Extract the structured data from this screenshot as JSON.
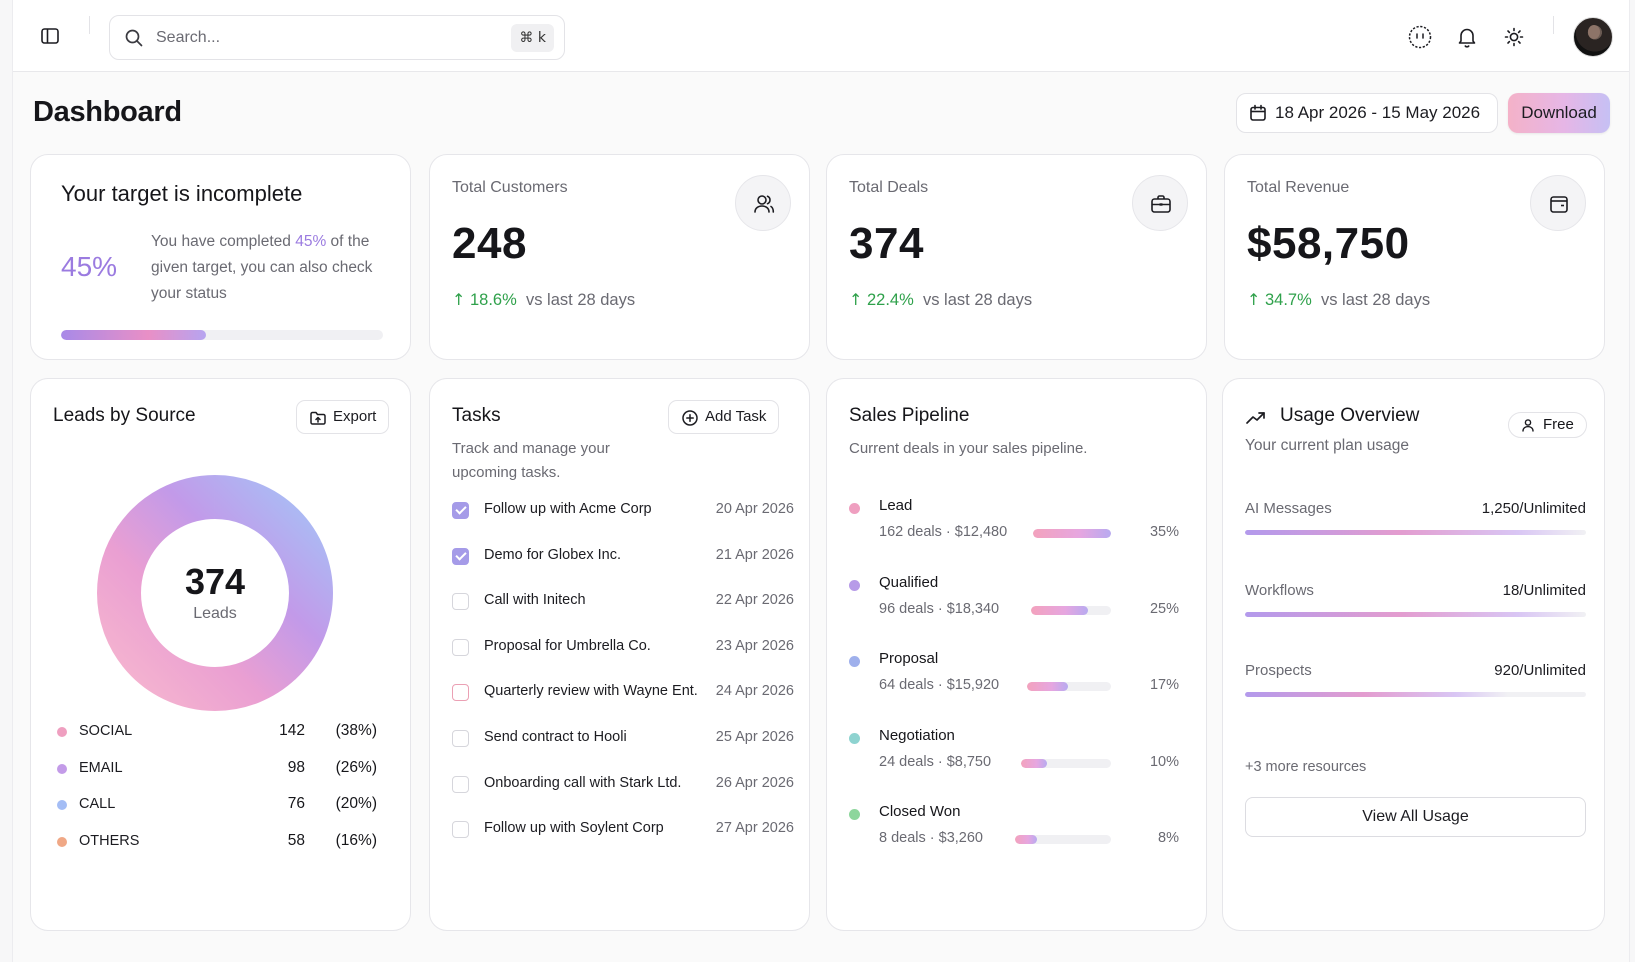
{
  "topbar": {
    "search_placeholder": "Search...",
    "shortcut": "⌘ k",
    "icons": [
      "sidebar-toggle-icon",
      "search-icon",
      "smiley-icon",
      "bell-icon",
      "sun-icon"
    ]
  },
  "header": {
    "title": "Dashboard",
    "date_range": "18 Apr 2026 - 15 May 2026",
    "download_label": "Download"
  },
  "target": {
    "title": "Your target is incomplete",
    "percent_label": "45%",
    "percent_value": 45,
    "text_before": "You have completed ",
    "text_highlight": "45%",
    "text_after": " of the given target, you can also check your status"
  },
  "stats": [
    {
      "label": "Total Customers",
      "value": "248",
      "change": "18.6%",
      "suffix": "vs last 28 days",
      "icon": "users-icon"
    },
    {
      "label": "Total Deals",
      "value": "374",
      "change": "22.4%",
      "suffix": "vs last 28 days",
      "icon": "briefcase-icon"
    },
    {
      "label": "Total Revenue",
      "value": "$58,750",
      "change": "34.7%",
      "suffix": "vs last 28 days",
      "icon": "wallet-icon"
    }
  ],
  "leads": {
    "title": "Leads by Source",
    "export_label": "Export",
    "center_value": "374",
    "center_label": "Leads",
    "sources": [
      {
        "name": "SOCIAL",
        "count": "142",
        "pct": "(38%)",
        "color": "#ef9fc0"
      },
      {
        "name": "EMAIL",
        "count": "98",
        "pct": "(26%)",
        "color": "#c39be8"
      },
      {
        "name": "CALL",
        "count": "76",
        "pct": "(20%)",
        "color": "#a4bdf5"
      },
      {
        "name": "OTHERS",
        "count": "58",
        "pct": "(16%)",
        "color": "#f0a886"
      }
    ]
  },
  "tasks": {
    "title": "Tasks",
    "add_label": "Add Task",
    "subtitle_line1": "Track and manage your",
    "subtitle_line2": "upcoming tasks.",
    "items": [
      {
        "name": "Follow up with Acme Corp",
        "date": "20 Apr 2026",
        "checked": true
      },
      {
        "name": "Demo for Globex Inc.",
        "date": "21 Apr 2026",
        "checked": true
      },
      {
        "name": "Call with Initech",
        "date": "22 Apr 2026",
        "checked": false
      },
      {
        "name": "Proposal for Umbrella Co.",
        "date": "23 Apr 2026",
        "checked": false
      },
      {
        "name": "Quarterly review with Wayne Ent.",
        "date": "24 Apr 2026",
        "checked": false
      },
      {
        "name": "Send contract to Hooli",
        "date": "25 Apr 2026",
        "checked": false
      },
      {
        "name": "Onboarding call with Stark Ltd.",
        "date": "26 Apr 2026",
        "checked": false
      },
      {
        "name": "Follow up with Soylent Corp",
        "date": "27 Apr 2026",
        "checked": false
      }
    ]
  },
  "pipeline": {
    "title": "Sales Pipeline",
    "subtitle": "Current deals in your sales pipeline.",
    "stages": [
      {
        "name": "Lead",
        "meta": "162 deals · $12,480",
        "pct": "35%",
        "value": 35,
        "color": "#ef9fc0"
      },
      {
        "name": "Qualified",
        "meta": "96 deals · $18,340",
        "pct": "25%",
        "value": 25,
        "color": "#b79be8"
      },
      {
        "name": "Proposal",
        "meta": "64 deals · $15,920",
        "pct": "17%",
        "value": 17,
        "color": "#9fb0ec"
      },
      {
        "name": "Negotiation",
        "meta": "24 deals · $8,750",
        "pct": "10%",
        "value": 10,
        "color": "#8ed3d0"
      },
      {
        "name": "Closed Won",
        "meta": "8 deals · $3,260",
        "pct": "8%",
        "value": 8,
        "color": "#8dd69c"
      }
    ]
  },
  "usage": {
    "title": "Usage Overview",
    "subtitle": "Your current plan usage",
    "plan": "Free",
    "items": [
      {
        "name": "AI Messages",
        "value": "1,250/Unlimited",
        "fill": 100
      },
      {
        "name": "Workflows",
        "value": "18/Unlimited",
        "fill": 100
      },
      {
        "name": "Prospects",
        "value": "920/Unlimited",
        "fill": 77
      }
    ],
    "more": "+3 more resources",
    "view_all_label": "View All Usage"
  }
}
